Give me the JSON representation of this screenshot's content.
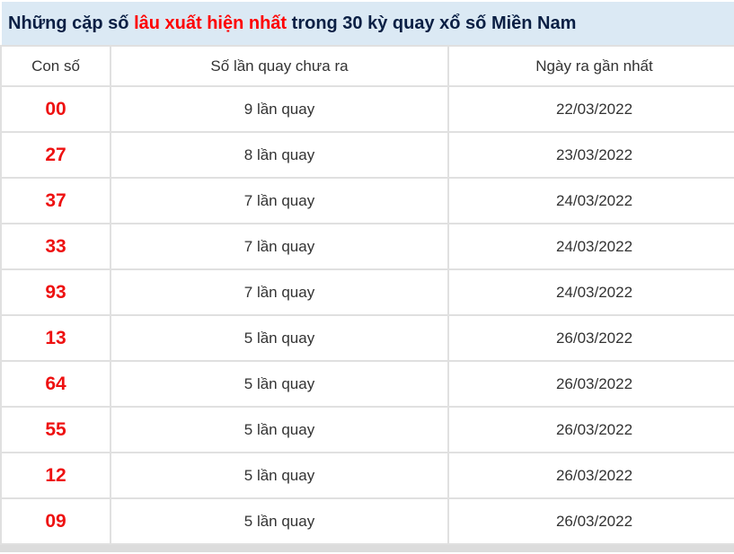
{
  "title": {
    "part1": "Những cặp số",
    "highlight": "lâu xuất hiện nhất",
    "part2": "trong 30 kỳ quay xổ số Miền Nam"
  },
  "table": {
    "headers": {
      "number": "Con số",
      "count": "Số lần quay chưa ra",
      "date": "Ngày ra gần nhất"
    },
    "rows": [
      {
        "number": "00",
        "count": "9 lần quay",
        "date": "22/03/2022"
      },
      {
        "number": "27",
        "count": "8 lần quay",
        "date": "23/03/2022"
      },
      {
        "number": "37",
        "count": "7 lần quay",
        "date": "24/03/2022"
      },
      {
        "number": "33",
        "count": "7 lần quay",
        "date": "24/03/2022"
      },
      {
        "number": "93",
        "count": "7 lần quay",
        "date": "24/03/2022"
      },
      {
        "number": "13",
        "count": "5 lần quay",
        "date": "26/03/2022"
      },
      {
        "number": "64",
        "count": "5 lần quay",
        "date": "26/03/2022"
      },
      {
        "number": "55",
        "count": "5 lần quay",
        "date": "26/03/2022"
      },
      {
        "number": "12",
        "count": "5 lần quay",
        "date": "26/03/2022"
      },
      {
        "number": "09",
        "count": "5 lần quay",
        "date": "26/03/2022"
      }
    ]
  },
  "colors": {
    "title_background": "#dbe9f4",
    "title_text": "#0a1f44",
    "highlight_red": "#fe0000",
    "number_red": "#ee1111",
    "cell_text": "#333333",
    "border": "#e0e0e0",
    "bottom_strip": "#dcdcdc"
  }
}
